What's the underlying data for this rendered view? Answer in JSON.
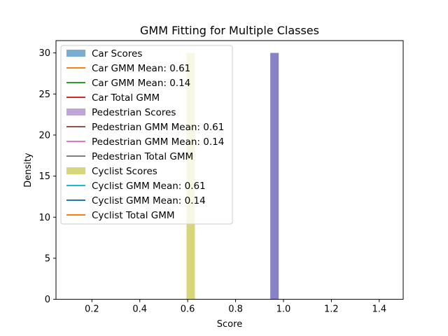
{
  "chart_data": {
    "type": "bar",
    "title": "GMM Fitting for Multiple Classes",
    "xlabel": "Score",
    "ylabel": "Density",
    "xlim": [
      0.05,
      1.5
    ],
    "ylim": [
      0,
      31.5
    ],
    "xticks": [
      0.2,
      0.4,
      0.6,
      0.8,
      1.0,
      1.2,
      1.4
    ],
    "xtick_labels": [
      "0.2",
      "0.4",
      "0.6",
      "0.8",
      "1.0",
      "1.2",
      "1.4"
    ],
    "yticks": [
      0,
      5,
      10,
      15,
      20,
      25,
      30
    ],
    "ytick_labels": [
      "0",
      "5",
      "10",
      "15",
      "20",
      "25",
      "30"
    ],
    "grid": false,
    "legend_position": "upper-left",
    "bars": [
      {
        "series": "Cyclist Scores",
        "x0": 0.595,
        "x1": 0.63,
        "height": 30,
        "color": "#bcbd22",
        "opacity": 0.6
      },
      {
        "series": "Car Scores",
        "x0": 0.945,
        "x1": 0.98,
        "height": 30,
        "color": "#1f77b4",
        "opacity": 0.6
      },
      {
        "series": "Pedestrian Scores",
        "x0": 0.945,
        "x1": 0.98,
        "height": 30,
        "color": "#9467bd",
        "opacity": 0.6
      }
    ],
    "legend": [
      {
        "label": "Car Scores",
        "kind": "patch",
        "color": "#1f77b4",
        "opacity": 0.6
      },
      {
        "label": "Car GMM Mean: 0.61",
        "kind": "line",
        "color": "#ff7f0e"
      },
      {
        "label": "Car GMM Mean: 0.14",
        "kind": "line",
        "color": "#2ca02c"
      },
      {
        "label": "Car Total GMM",
        "kind": "line",
        "color": "#d62728"
      },
      {
        "label": "Pedestrian Scores",
        "kind": "patch",
        "color": "#9467bd",
        "opacity": 0.6
      },
      {
        "label": "Pedestrian GMM Mean: 0.61",
        "kind": "line",
        "color": "#8c564b"
      },
      {
        "label": "Pedestrian GMM Mean: 0.14",
        "kind": "line",
        "color": "#e377c2"
      },
      {
        "label": "Pedestrian Total GMM",
        "kind": "line",
        "color": "#7f7f7f"
      },
      {
        "label": "Cyclist Scores",
        "kind": "patch",
        "color": "#bcbd22",
        "opacity": 0.6
      },
      {
        "label": "Cyclist GMM Mean: 0.61",
        "kind": "line",
        "color": "#17becf"
      },
      {
        "label": "Cyclist GMM Mean: 0.14",
        "kind": "line",
        "color": "#1f77b4"
      },
      {
        "label": "Cyclist Total GMM",
        "kind": "line",
        "color": "#ff7f0e"
      }
    ]
  }
}
